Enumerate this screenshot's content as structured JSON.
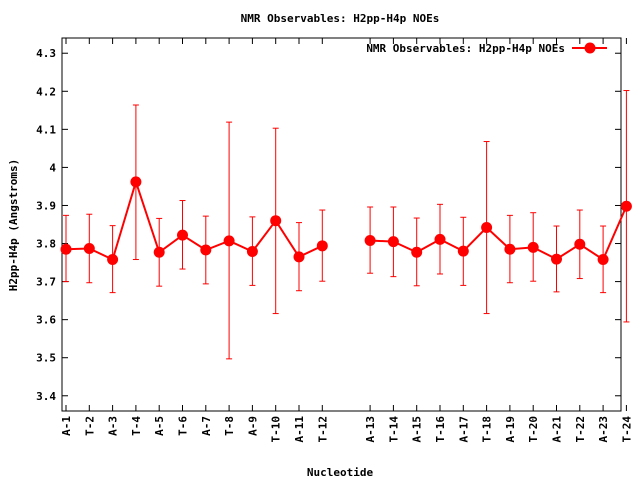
{
  "chart_data": {
    "type": "line",
    "title": "NMR Observables: H2pp-H4p NOEs",
    "xlabel": "Nucleotide",
    "ylabel": "H2pp-H4p (Angstroms)",
    "ylim": [
      3.36,
      4.34
    ],
    "yticks": [
      "3.4",
      "3.5",
      "3.6",
      "3.7",
      "3.8",
      "3.9",
      "4",
      "4.1",
      "4.2",
      "4.3"
    ],
    "grid": false,
    "legend_position": "top-right",
    "series": [
      {
        "name": "NMR Observables: H2pp-H4p NOEs",
        "color": "#ff0000",
        "segments": [
          {
            "categories": [
              "A-1",
              "T-2",
              "A-3",
              "T-4",
              "A-5",
              "T-6",
              "A-7",
              "T-8",
              "A-9",
              "T-10",
              "A-11",
              "T-12"
            ],
            "values": [
              3.785,
              3.787,
              3.758,
              3.962,
              3.777,
              3.822,
              3.783,
              3.807,
              3.779,
              3.86,
              3.765,
              3.794
            ],
            "err_low": [
              3.7,
              3.697,
              3.671,
              3.758,
              3.688,
              3.733,
              3.694,
              3.497,
              3.69,
              3.616,
              3.676,
              3.701
            ],
            "err_high": [
              3.874,
              3.877,
              3.847,
              4.164,
              3.866,
              3.913,
              3.872,
              4.119,
              3.87,
              4.103,
              3.855,
              3.888
            ]
          },
          {
            "categories": [
              "A-13",
              "T-14",
              "A-15",
              "T-16",
              "A-17",
              "T-18",
              "A-19",
              "T-20",
              "A-21",
              "T-22",
              "A-23",
              "T-24"
            ],
            "values": [
              3.808,
              3.805,
              3.777,
              3.811,
              3.78,
              3.842,
              3.785,
              3.79,
              3.759,
              3.798,
              3.758,
              3.898
            ],
            "err_low": [
              3.722,
              3.713,
              3.689,
              3.72,
              3.69,
              3.616,
              3.697,
              3.701,
              3.673,
              3.708,
              3.671,
              3.594
            ],
            "err_high": [
              3.896,
              3.896,
              3.867,
              3.903,
              3.869,
              4.068,
              3.874,
              3.881,
              3.846,
              3.888,
              3.846,
              4.202
            ]
          }
        ]
      }
    ]
  }
}
